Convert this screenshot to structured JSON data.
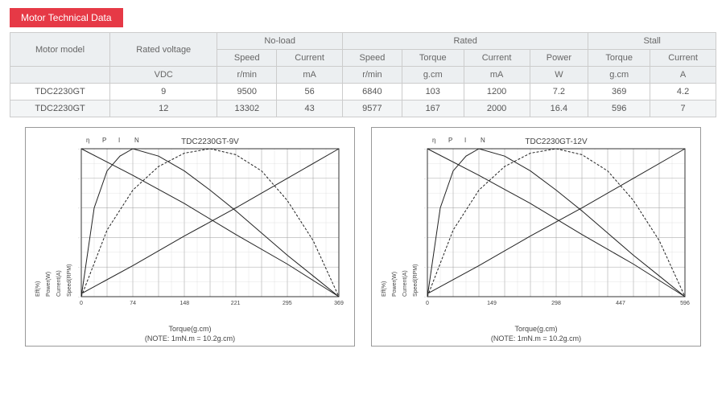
{
  "title": "Motor Technical Data",
  "table": {
    "group_headers": [
      "No-load",
      "Rated",
      "Stall"
    ],
    "main_headers": [
      "Motor model",
      "Rated voltage",
      "Speed",
      "Current",
      "Speed",
      "Torque",
      "Current",
      "Power",
      "Torque",
      "Current"
    ],
    "unit_row": [
      "",
      "VDC",
      "r/min",
      "mA",
      "r/min",
      "g.cm",
      "mA",
      "W",
      "g.cm",
      "A"
    ],
    "rows": [
      [
        "TDC2230GT",
        "9",
        "9500",
        "56",
        "6840",
        "103",
        "1200",
        "7.2",
        "369",
        "4.2"
      ],
      [
        "TDC2230GT",
        "12",
        "13302",
        "43",
        "9577",
        "167",
        "2000",
        "16.4",
        "596",
        "7"
      ]
    ]
  },
  "charts": [
    {
      "title": "TDC2230GT-9V",
      "xlabel": "Torque(g.cm)",
      "note": "(NOTE: 1mN.m = 10.2g.cm)",
      "x_max": 369,
      "x_ticks": [
        0,
        74,
        148,
        221,
        295,
        369
      ],
      "y_left_labels": [
        "Eff(%)",
        "Power(W)",
        "Current(A)",
        "Speed(RPM)"
      ],
      "grid_color": "#555",
      "bg": "#ffffff",
      "curves": {
        "speed": {
          "pts": [
            [
              0,
              1.0
            ],
            [
              0.2,
              0.82
            ],
            [
              0.4,
              0.63
            ],
            [
              0.6,
              0.42
            ],
            [
              0.8,
              0.22
            ],
            [
              1.0,
              0.0
            ]
          ]
        },
        "current": {
          "pts": [
            [
              0,
              0.02
            ],
            [
              0.2,
              0.21
            ],
            [
              0.4,
              0.41
            ],
            [
              0.6,
              0.6
            ],
            [
              0.8,
              0.8
            ],
            [
              1.0,
              1.0
            ]
          ]
        },
        "power": {
          "pts": [
            [
              0,
              0.0
            ],
            [
              0.1,
              0.45
            ],
            [
              0.2,
              0.72
            ],
            [
              0.3,
              0.88
            ],
            [
              0.4,
              0.97
            ],
            [
              0.5,
              1.0
            ],
            [
              0.6,
              0.96
            ],
            [
              0.7,
              0.85
            ],
            [
              0.8,
              0.65
            ],
            [
              0.9,
              0.38
            ],
            [
              1.0,
              0.0
            ]
          ]
        },
        "eff": {
          "pts": [
            [
              0,
              0.0
            ],
            [
              0.05,
              0.6
            ],
            [
              0.1,
              0.85
            ],
            [
              0.15,
              0.95
            ],
            [
              0.2,
              1.0
            ],
            [
              0.3,
              0.95
            ],
            [
              0.4,
              0.85
            ],
            [
              0.5,
              0.72
            ],
            [
              0.6,
              0.58
            ],
            [
              0.7,
              0.43
            ],
            [
              0.8,
              0.28
            ],
            [
              0.9,
              0.14
            ],
            [
              1.0,
              0.0
            ]
          ]
        }
      }
    },
    {
      "title": "TDC2230GT-12V",
      "xlabel": "Torque(g.cm)",
      "note": "(NOTE: 1mN.m = 10.2g.cm)",
      "x_max": 596,
      "x_ticks": [
        0,
        149,
        298,
        447,
        596
      ],
      "y_left_labels": [
        "Eff(%)",
        "Power(W)",
        "Current(A)",
        "Speed(RPM)"
      ],
      "grid_color": "#555",
      "bg": "#ffffff",
      "curves": {
        "speed": {
          "pts": [
            [
              0,
              1.0
            ],
            [
              0.2,
              0.82
            ],
            [
              0.4,
              0.63
            ],
            [
              0.6,
              0.42
            ],
            [
              0.8,
              0.22
            ],
            [
              1.0,
              0.0
            ]
          ]
        },
        "current": {
          "pts": [
            [
              0,
              0.02
            ],
            [
              0.2,
              0.21
            ],
            [
              0.4,
              0.41
            ],
            [
              0.6,
              0.6
            ],
            [
              0.8,
              0.8
            ],
            [
              1.0,
              1.0
            ]
          ]
        },
        "power": {
          "pts": [
            [
              0,
              0.0
            ],
            [
              0.1,
              0.45
            ],
            [
              0.2,
              0.72
            ],
            [
              0.3,
              0.88
            ],
            [
              0.4,
              0.97
            ],
            [
              0.5,
              1.0
            ],
            [
              0.6,
              0.96
            ],
            [
              0.7,
              0.85
            ],
            [
              0.8,
              0.65
            ],
            [
              0.9,
              0.38
            ],
            [
              1.0,
              0.0
            ]
          ]
        },
        "eff": {
          "pts": [
            [
              0,
              0.0
            ],
            [
              0.05,
              0.6
            ],
            [
              0.1,
              0.85
            ],
            [
              0.15,
              0.95
            ],
            [
              0.2,
              1.0
            ],
            [
              0.3,
              0.95
            ],
            [
              0.4,
              0.85
            ],
            [
              0.5,
              0.72
            ],
            [
              0.6,
              0.58
            ],
            [
              0.7,
              0.43
            ],
            [
              0.8,
              0.28
            ],
            [
              0.9,
              0.14
            ],
            [
              1.0,
              0.0
            ]
          ]
        }
      }
    }
  ]
}
